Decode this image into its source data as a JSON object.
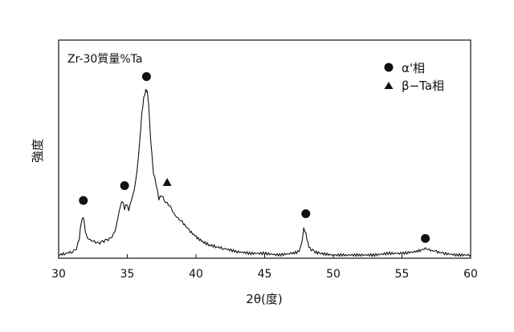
{
  "chart_data": {
    "type": "line",
    "title": "",
    "xlabel": "2θ(度)",
    "ylabel": "強度",
    "xlim": [
      30,
      60
    ],
    "xticks": [
      30,
      35,
      40,
      45,
      50,
      55,
      60
    ],
    "y_ticks_shown": false,
    "grid": false,
    "legend_placement": "top-right",
    "annotation": "Zr-30質量%Ta",
    "legend": [
      {
        "marker": "circle",
        "label": "α'相"
      },
      {
        "marker": "triangle",
        "label": "β−Ta相"
      }
    ],
    "series": [
      {
        "x": [
          30.0,
          30.5,
          31.0,
          31.3,
          31.5,
          31.65,
          31.8,
          31.95,
          32.1,
          32.3,
          32.6,
          32.9,
          33.2,
          33.5,
          33.8,
          34.1,
          34.3,
          34.5,
          34.65,
          34.8,
          34.95,
          35.1,
          35.3,
          35.5,
          35.7,
          35.9,
          36.05,
          36.2,
          36.35,
          36.45,
          36.55,
          36.7,
          36.9,
          37.1,
          37.3,
          37.5,
          37.8,
          38.1,
          38.4,
          38.7,
          39.0,
          39.5,
          40.0,
          40.5,
          41.0,
          41.5,
          42.0,
          43.0,
          44.0,
          45.0,
          46.0,
          47.0,
          47.5,
          47.7,
          47.85,
          48.0,
          48.15,
          48.3,
          48.6,
          49.0,
          50.0,
          51.0,
          52.0,
          53.0,
          54.0,
          55.0,
          56.0,
          56.4,
          56.7,
          57.0,
          57.5,
          58.0,
          59.0,
          60.0
        ],
        "y": [
          0.0,
          0.01,
          0.02,
          0.04,
          0.1,
          0.2,
          0.23,
          0.14,
          0.1,
          0.09,
          0.08,
          0.07,
          0.08,
          0.09,
          0.1,
          0.14,
          0.22,
          0.3,
          0.33,
          0.28,
          0.31,
          0.27,
          0.33,
          0.39,
          0.5,
          0.68,
          0.85,
          0.95,
          1.0,
          0.99,
          0.92,
          0.7,
          0.5,
          0.43,
          0.34,
          0.36,
          0.32,
          0.3,
          0.25,
          0.22,
          0.2,
          0.15,
          0.11,
          0.08,
          0.06,
          0.05,
          0.04,
          0.02,
          0.01,
          0.01,
          0.0,
          0.01,
          0.02,
          0.07,
          0.16,
          0.13,
          0.07,
          0.04,
          0.02,
          0.01,
          0.0,
          0.0,
          0.0,
          0.0,
          0.01,
          0.01,
          0.02,
          0.03,
          0.04,
          0.03,
          0.02,
          0.01,
          0.0,
          0.0
        ]
      }
    ],
    "markers": [
      {
        "x": 31.8,
        "y": 0.33,
        "type": "circle"
      },
      {
        "x": 34.8,
        "y": 0.42,
        "type": "circle"
      },
      {
        "x": 36.4,
        "y": 1.08,
        "type": "circle"
      },
      {
        "x": 37.9,
        "y": 0.44,
        "type": "triangle"
      },
      {
        "x": 48.0,
        "y": 0.25,
        "type": "circle"
      },
      {
        "x": 56.7,
        "y": 0.1,
        "type": "circle"
      }
    ]
  }
}
